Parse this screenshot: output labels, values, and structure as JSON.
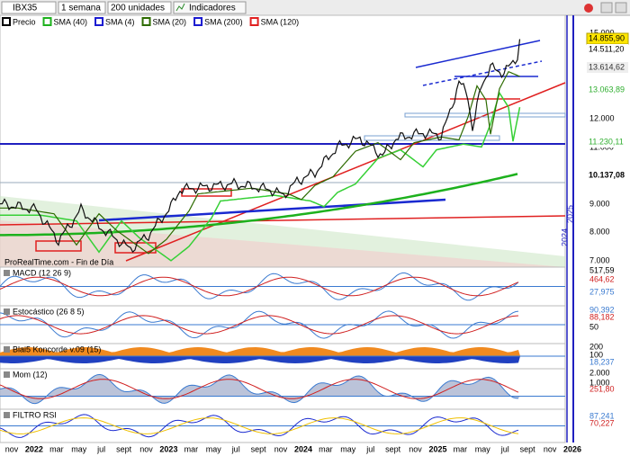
{
  "toolbar": {
    "symbol": "IBX35",
    "period": "1 semana",
    "units": "200 unidades",
    "indicators": "Indicadores"
  },
  "legend": [
    {
      "name": "Precio",
      "color": "#000000"
    },
    {
      "name": "SMA (40)",
      "color": "#1db11d"
    },
    {
      "name": "SMA (4)",
      "color": "#1a1ad0"
    },
    {
      "name": "SMA (20)",
      "color": "#2d6b00"
    },
    {
      "name": "SMA (200)",
      "color": "#1a1ad0"
    },
    {
      "name": "SMA (120)",
      "color": "#e02020"
    }
  ],
  "price_axis": {
    "ticks": [
      {
        "text": "15.000",
        "y": 37
      },
      {
        "text": "12.000",
        "y": 132
      },
      {
        "text": "11.000",
        "y": 164
      },
      {
        "text": "9.000",
        "y": 227
      },
      {
        "text": "8.000",
        "y": 258
      },
      {
        "text": "7.000",
        "y": 290
      }
    ],
    "labels": [
      {
        "text": "14.855,90",
        "color": "#000000",
        "bg": "#ffe600"
      },
      {
        "text": "14.511,20",
        "color": "#000000",
        "bg": "#ffffff"
      },
      {
        "text": "13.614,62",
        "color": "#333333",
        "bg": "#eeeeee"
      },
      {
        "text": "13.063,89",
        "color": "#2fae2f",
        "bg": "#ffffff"
      },
      {
        "text": "11.230,11",
        "color": "#2fae2f",
        "bg": "#ffffff"
      },
      {
        "text": "10.137,08",
        "color": "#000000",
        "bg": "#ffffff"
      }
    ]
  },
  "watermark": "ProRealTime.com - Fin de Día",
  "panels": [
    {
      "title": "MACD (12 26 9)",
      "labels": [
        {
          "text": "517,59",
          "color": "#000"
        },
        {
          "text": "464,62",
          "color": "#d02020"
        },
        {
          "text": "27,975",
          "color": "#3a7ad0"
        }
      ]
    },
    {
      "title": "Estocástico (26 8 5)",
      "labels": [
        {
          "text": "90,392",
          "color": "#3a7ad0"
        },
        {
          "text": "88,182",
          "color": "#d02020"
        },
        {
          "text": "50",
          "color": "#000"
        }
      ]
    },
    {
      "title": "Blai5 Koncorde v.09 (15)",
      "labels": [
        {
          "text": "200",
          "color": "#000"
        },
        {
          "text": "100",
          "color": "#000"
        },
        {
          "text": "18,237",
          "color": "#3a7ad0"
        }
      ]
    },
    {
      "title": "Mom (12)",
      "labels": [
        {
          "text": "2.000",
          "color": "#000"
        },
        {
          "text": "1.000",
          "color": "#000"
        },
        {
          "text": "251,80",
          "color": "#d02020"
        }
      ]
    },
    {
      "title": "FILTRO RSI",
      "labels": [
        {
          "text": "87,241",
          "color": "#3a7ad0"
        },
        {
          "text": "70,227",
          "color": "#d02020"
        }
      ]
    }
  ],
  "x_axis": [
    "nov",
    "2022",
    "mar",
    "may",
    "jul",
    "sept",
    "nov",
    "2023",
    "mar",
    "may",
    "jul",
    "sept",
    "nov",
    "2024",
    "mar",
    "may",
    "jul",
    "sept",
    "nov",
    "2025",
    "mar",
    "may",
    "jul",
    "sept",
    "nov",
    "2026"
  ]
}
